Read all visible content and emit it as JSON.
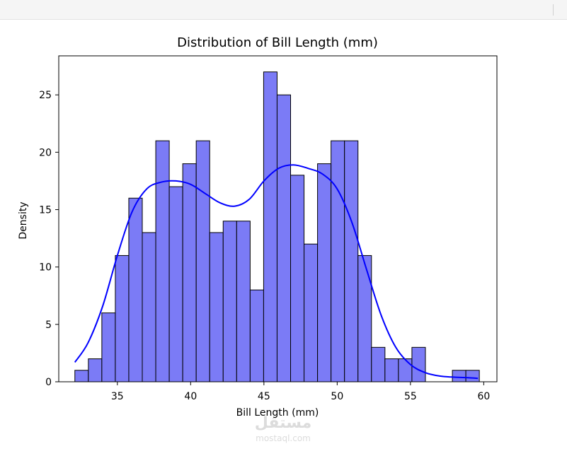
{
  "chart_data": {
    "type": "bar",
    "title": "Distribution of Bill Length (mm)",
    "xlabel": "Bill Length (mm)",
    "ylabel": "Density",
    "xlim": [
      31.0,
      60.9
    ],
    "ylim": [
      0,
      28.4
    ],
    "xticks": [
      35,
      40,
      45,
      50,
      55,
      60
    ],
    "yticks": [
      0,
      5,
      10,
      15,
      20,
      25
    ],
    "bin_width": 0.92,
    "bins": [
      {
        "x0": 32.1,
        "count": 1
      },
      {
        "x0": 33.02,
        "count": 2
      },
      {
        "x0": 33.94,
        "count": 6
      },
      {
        "x0": 34.86,
        "count": 11
      },
      {
        "x0": 35.78,
        "count": 16
      },
      {
        "x0": 36.7,
        "count": 13
      },
      {
        "x0": 37.62,
        "count": 21
      },
      {
        "x0": 38.54,
        "count": 17
      },
      {
        "x0": 39.46,
        "count": 19
      },
      {
        "x0": 40.38,
        "count": 21
      },
      {
        "x0": 41.3,
        "count": 13
      },
      {
        "x0": 42.22,
        "count": 14
      },
      {
        "x0": 43.14,
        "count": 14
      },
      {
        "x0": 44.06,
        "count": 8
      },
      {
        "x0": 44.98,
        "count": 27
      },
      {
        "x0": 45.9,
        "count": 25
      },
      {
        "x0": 46.82,
        "count": 18
      },
      {
        "x0": 47.74,
        "count": 12
      },
      {
        "x0": 48.66,
        "count": 19
      },
      {
        "x0": 49.58,
        "count": 21
      },
      {
        "x0": 50.5,
        "count": 21
      },
      {
        "x0": 51.42,
        "count": 11
      },
      {
        "x0": 52.34,
        "count": 3
      },
      {
        "x0": 53.26,
        "count": 2
      },
      {
        "x0": 54.18,
        "count": 2
      },
      {
        "x0": 55.1,
        "count": 3
      },
      {
        "x0": 56.02,
        "count": 0
      },
      {
        "x0": 56.94,
        "count": 0
      },
      {
        "x0": 57.86,
        "count": 1
      },
      {
        "x0": 58.78,
        "count": 1
      }
    ],
    "kde": {
      "x": [
        32.1,
        33.0,
        34.0,
        35.0,
        36.0,
        37.0,
        38.0,
        39.0,
        40.0,
        41.0,
        42.0,
        43.0,
        44.0,
        45.0,
        46.0,
        47.0,
        48.0,
        49.0,
        50.0,
        51.0,
        52.0,
        53.0,
        54.0,
        55.0,
        56.0,
        57.0,
        58.0,
        59.0,
        59.6
      ],
      "y": [
        1.7,
        3.4,
        6.6,
        11.0,
        14.8,
        16.8,
        17.4,
        17.5,
        17.2,
        16.4,
        15.6,
        15.3,
        15.9,
        17.5,
        18.6,
        18.9,
        18.6,
        18.1,
        16.8,
        13.9,
        9.8,
        5.8,
        3.0,
        1.5,
        0.8,
        0.5,
        0.4,
        0.35,
        0.3
      ]
    },
    "colors": {
      "bar_fill": "#7b7bf6",
      "bar_edge": "#000000",
      "kde_line": "#0000ff"
    },
    "grid": false,
    "legend": "none"
  },
  "watermark": {
    "logo": "مستقل",
    "url": "mostaql.com"
  }
}
